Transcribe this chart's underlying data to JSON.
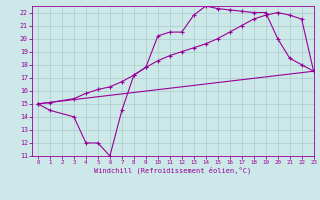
{
  "line1_x": [
    0,
    1,
    3,
    4,
    5,
    6,
    7,
    8,
    9,
    10,
    11,
    12,
    13,
    14,
    15,
    16,
    17,
    18,
    19,
    20,
    21,
    22,
    23
  ],
  "line1_y": [
    15.0,
    14.5,
    14.0,
    12.0,
    12.0,
    11.0,
    14.5,
    17.2,
    17.8,
    20.2,
    20.5,
    20.5,
    21.8,
    22.5,
    22.3,
    22.2,
    22.1,
    22.0,
    22.0,
    20.0,
    18.5,
    18.0,
    17.5
  ],
  "line2_x": [
    0,
    23
  ],
  "line2_y": [
    15.0,
    17.5
  ],
  "line3_x": [
    0,
    1,
    3,
    4,
    5,
    6,
    7,
    8,
    9,
    10,
    11,
    12,
    13,
    14,
    15,
    16,
    17,
    18,
    19,
    20,
    21,
    22,
    23
  ],
  "line3_y": [
    15.0,
    15.1,
    15.4,
    15.8,
    16.1,
    16.3,
    16.7,
    17.2,
    17.8,
    18.3,
    18.7,
    19.0,
    19.3,
    19.6,
    20.0,
    20.5,
    21.0,
    21.5,
    21.8,
    22.0,
    21.8,
    21.5,
    17.5
  ],
  "line_color": "#990099",
  "bg_color": "#cce8e8",
  "grid_color": "#aacccc",
  "xlabel": "Windchill (Refroidissement éolien,°C)",
  "ylim": [
    11,
    22.5
  ],
  "xlim": [
    -0.5,
    23
  ],
  "yticks": [
    11,
    12,
    13,
    14,
    15,
    16,
    17,
    18,
    19,
    20,
    21,
    22
  ],
  "xticks": [
    0,
    1,
    2,
    3,
    4,
    5,
    6,
    7,
    8,
    9,
    10,
    11,
    12,
    13,
    14,
    15,
    16,
    17,
    18,
    19,
    20,
    21,
    22,
    23
  ]
}
